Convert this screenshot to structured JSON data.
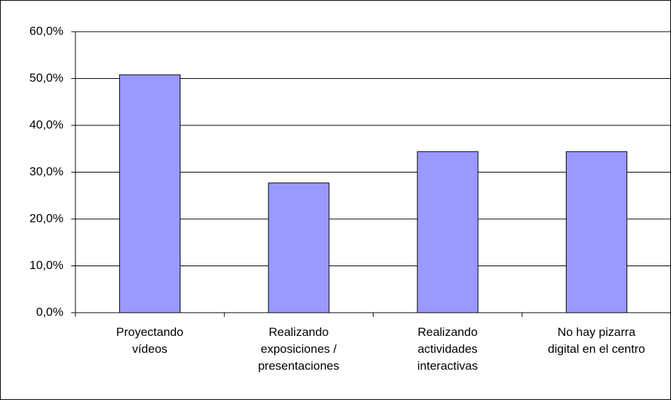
{
  "chart_data": {
    "type": "bar",
    "categories": [
      "Proyectando\nvídeos",
      "Realizando\nexposiciones /\npresentaciones",
      "Realizando\nactividades\ninteractivas",
      "No hay pizarra\ndigital en el centro"
    ],
    "values": [
      50.8,
      27.7,
      34.4,
      34.4
    ],
    "color": "#9999ff",
    "ylim": [
      0,
      60
    ],
    "yticks": [
      {
        "value": 0,
        "label": "0,0%"
      },
      {
        "value": 10,
        "label": "10,0%"
      },
      {
        "value": 20,
        "label": "20,0%"
      },
      {
        "value": 30,
        "label": "30,0%"
      },
      {
        "value": 40,
        "label": "40,0%"
      },
      {
        "value": 50,
        "label": "50,0%"
      },
      {
        "value": 60,
        "label": "60,0%"
      }
    ],
    "grid": true
  }
}
